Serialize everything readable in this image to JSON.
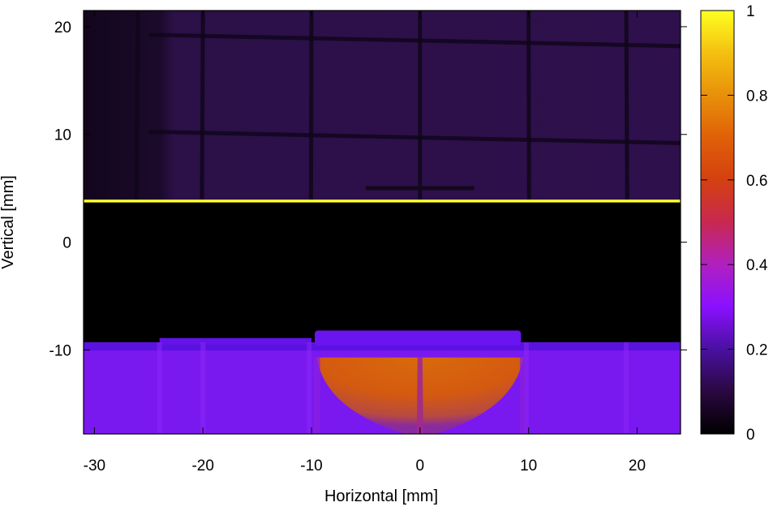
{
  "chart_data": {
    "type": "heatmap",
    "title": "",
    "xlabel": "Horizontal [mm]",
    "ylabel": "Vertical [mm]",
    "xlim": [
      -31,
      24
    ],
    "ylim": [
      -17.8,
      21.5
    ],
    "xticks": [
      -30,
      -20,
      -10,
      0,
      10,
      20
    ],
    "yticks": [
      -10,
      0,
      10,
      20
    ],
    "colorbar": {
      "range": [
        0,
        1
      ],
      "ticks": [
        0,
        0.2,
        0.4,
        0.6,
        0.8,
        1
      ],
      "palette": [
        "#000000",
        "#3a0a6e",
        "#8a10ff",
        "#c02490",
        "#d43a18",
        "#e0700a",
        "#f4c010",
        "#ffff20"
      ]
    },
    "regions": [
      {
        "name": "upper background with grid",
        "y_range": [
          3.9,
          21.5
        ],
        "value": 0.1
      },
      {
        "name": "bright horizontal edge",
        "y": 3.8,
        "value": 1.0
      },
      {
        "name": "dark gap",
        "y_range": [
          -9.3,
          3.8
        ],
        "value": 0.0
      },
      {
        "name": "lower band",
        "y_range": [
          -17.8,
          -9.3
        ],
        "value": 0.28
      },
      {
        "name": "central hot lobe",
        "x_range": [
          -9.5,
          9.5
        ],
        "y_range": [
          -17.8,
          -10.7
        ],
        "value": 0.62
      }
    ],
    "grid_lines_x": [
      -26,
      -20,
      -10,
      0,
      10,
      19
    ],
    "grid_lines_y": [
      18.8,
      9.8
    ]
  }
}
